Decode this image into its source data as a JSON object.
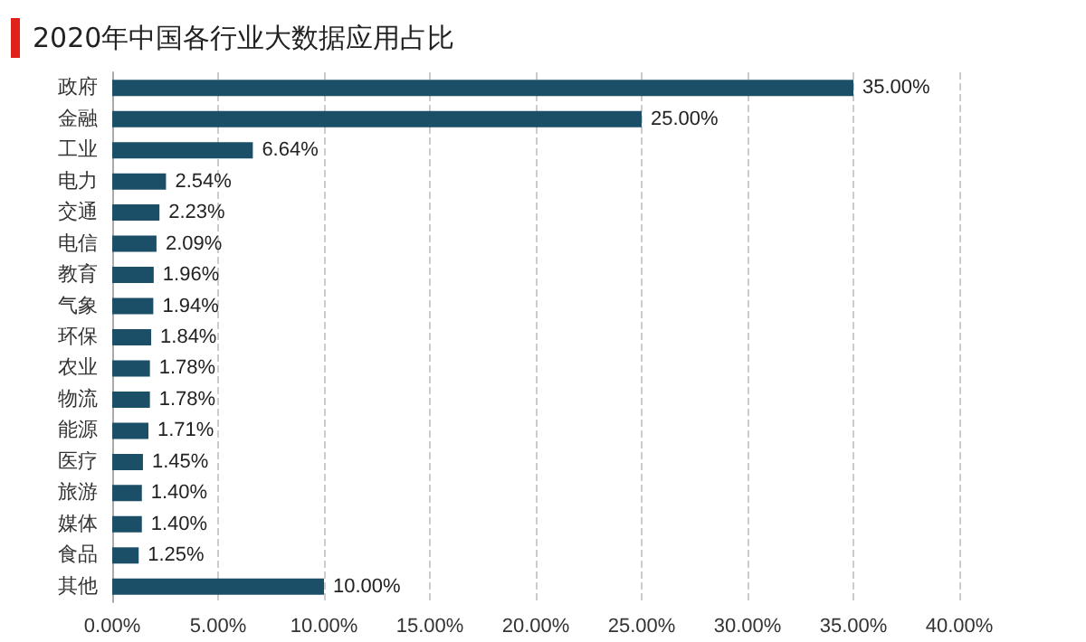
{
  "chart_data": {
    "type": "bar",
    "orientation": "horizontal",
    "title": "2020年中国各行业大数据应用占比",
    "categories": [
      "政府",
      "金融",
      "工业",
      "电力",
      "交通",
      "电信",
      "教育",
      "气象",
      "环保",
      "农业",
      "物流",
      "能源",
      "医疗",
      "旅游",
      "媒体",
      "食品",
      "其他"
    ],
    "values": [
      35,
      25,
      6.64,
      2.54,
      2.23,
      2.09,
      1.96,
      1.94,
      1.84,
      1.78,
      1.78,
      1.71,
      1.45,
      1.4,
      1.4,
      1.25,
      10
    ],
    "value_labels": [
      "35.00%",
      "25.00%",
      "6.64%",
      "2.54%",
      "2.23%",
      "2.09%",
      "1.96%",
      "1.94%",
      "1.84%",
      "1.78%",
      "1.78%",
      "1.71%",
      "1.45%",
      "1.40%",
      "1.40%",
      "1.25%",
      "10.00%"
    ],
    "color": "#1b4f68",
    "xlim": [
      0,
      40
    ],
    "xticks": [
      {
        "value": 0,
        "label": "0.00%"
      },
      {
        "value": 5,
        "label": "5.00%"
      },
      {
        "value": 10,
        "label": "10.00%"
      },
      {
        "value": 15,
        "label": "15.00%"
      },
      {
        "value": 20,
        "label": "20.00%"
      },
      {
        "value": 25,
        "label": "25.00%"
      },
      {
        "value": 30,
        "label": "30.00%"
      },
      {
        "value": 35,
        "label": "35.00%"
      },
      {
        "value": 40,
        "label": "40.00%"
      }
    ],
    "grid": "x"
  }
}
